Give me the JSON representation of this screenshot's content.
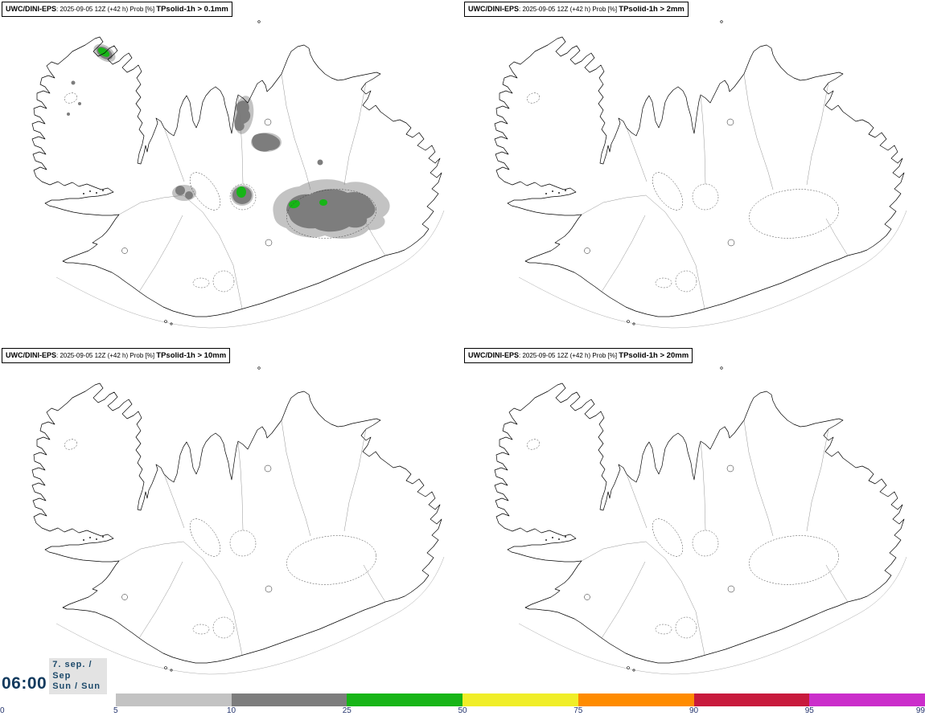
{
  "panels": [
    {
      "model": "UWC/DINI-EPS",
      "meta": ": 2025-09-05 12Z (+42 h) Prob [%] ",
      "field": "TPsolid-1h > 0.1mm"
    },
    {
      "model": "UWC/DINI-EPS",
      "meta": ": 2025-09-05 12Z (+42 h) Prob [%] ",
      "field": "TPsolid-1h > 2mm"
    },
    {
      "model": "UWC/DINI-EPS",
      "meta": ": 2025-09-05 12Z (+42 h) Prob [%] ",
      "field": "TPsolid-1h > 10mm"
    },
    {
      "model": "UWC/DINI-EPS",
      "meta": ": 2025-09-05 12Z (+42 h) Prob [%] ",
      "field": "TPsolid-1h > 20mm"
    }
  ],
  "footer": {
    "clock": "06:00",
    "date_lines": [
      "7. sep. /",
      "Sep",
      "Sun / Sun"
    ],
    "clock_color": "#123a5e",
    "date_color": "#1d4a6b"
  },
  "colorbar": {
    "ticks": [
      "0",
      "5",
      "10",
      "25",
      "50",
      "75",
      "90",
      "95",
      "99"
    ],
    "colors": [
      "#ffffff",
      "#c3c3c3",
      "#7d7d7d",
      "#17b517",
      "#f0ee28",
      "#ff8b00",
      "#c81a3c",
      "#cb2ecb"
    ],
    "tick_color": "#25356e"
  },
  "shading": {
    "prob_5_10": "#c3c3c3",
    "prob_10_25": "#7d7d7d",
    "prob_25_50": "#17b517"
  }
}
